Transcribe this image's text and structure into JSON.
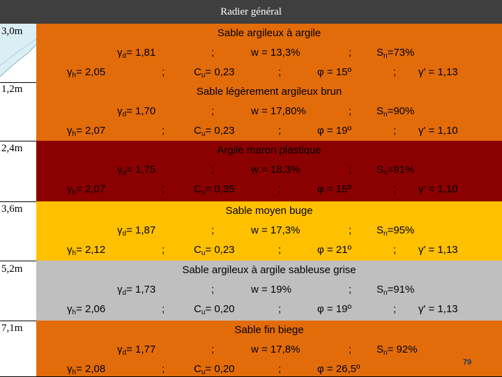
{
  "header": {
    "title": "Radier général"
  },
  "colors": {
    "orange": "#e36c0a",
    "darkred": "#8b0000",
    "yellow": "#ffc000",
    "grey": "#bfbfbf",
    "header": "#3f3f3f",
    "accent_blue": "#dbeef4"
  },
  "layers": [
    {
      "depth": "3,0m",
      "name": "Sable argileux à argile",
      "color": "#e36c0a",
      "gd_sym": "γ",
      "gd_sub": "d",
      "gd_val": "= 1,81",
      "sep1": ";",
      "w": "w = 13,3%",
      "sep2": ";",
      "sn_sym": "S",
      "sn_sub": "n",
      "sn_val": "=73%",
      "gh_sym": "γ",
      "gh_sub": "h",
      "gh_val": "= 2,05",
      "sep3": ";",
      "cu_sym": "C",
      "cu_sub": "u",
      "cu_val": "= 0,23",
      "sep4": ";",
      "phi": "φ = 15º",
      "sep5": ";",
      "gp": "γ' = 1,13"
    },
    {
      "depth": "1,2m",
      "name": "Sable légèrement argileux brun",
      "color": "#e36c0a",
      "gd_sym": "γ",
      "gd_sub": "d",
      "gd_val": "= 1,70",
      "sep1": ";",
      "w": "w = 17,80%",
      "sep2": ";",
      "sn_sym": "S",
      "sn_sub": "n",
      "sn_val": "=90%",
      "gh_sym": "γ",
      "gh_sub": "h",
      "gh_val": "= 2,07",
      "sep3": ";",
      "cu_sym": "C",
      "cu_sub": "u",
      "cu_val": "= 0,23",
      "sep4": ";",
      "phi": "φ = 19º",
      "sep5": ";",
      "gp": "γ' = 1,10"
    },
    {
      "depth": "2,4m",
      "name": "Argile maron plastique",
      "color": "#8b0000",
      "gd_sym": "γ",
      "gd_sub": "d",
      "gd_val": "= 1,75",
      "sep1": ";",
      "w": "w = 18,3%",
      "sep2": ";",
      "sn_sym": "S",
      "sn_sub": "n",
      "sn_val": "=91%",
      "gh_sym": "γ",
      "gh_sub": "h",
      "gh_val": "= 2,07",
      "sep3": ";",
      "cu_sym": "C",
      "cu_sub": "u",
      "cu_val": "= 0,35",
      "sep4": ";",
      "phi": "φ = 15º",
      "sep5": ";",
      "gp": "γ' = 1,10"
    },
    {
      "depth": "3,6m",
      "name": "Sable moyen buge",
      "color": "#ffc000",
      "gd_sym": "γ",
      "gd_sub": "d",
      "gd_val": "= 1,87",
      "sep1": ";",
      "w": "w = 17,3%",
      "sep2": ";",
      "sn_sym": "S",
      "sn_sub": "n",
      "sn_val": "=95%",
      "gh_sym": "γ",
      "gh_sub": "h",
      "gh_val": "= 2,12",
      "sep3": ";",
      "cu_sym": "C",
      "cu_sub": "u",
      "cu_val": "= 0,23",
      "sep4": ";",
      "phi": "φ = 21º",
      "sep5": ";",
      "gp": "γ' = 1,13"
    },
    {
      "depth": "5,2m",
      "name": "Sable argileux à argile sableuse grise",
      "color": "#bfbfbf",
      "gd_sym": "γ",
      "gd_sub": "d",
      "gd_val": "= 1,73",
      "sep1": ";",
      "w": "w = 19%",
      "sep2": ";",
      "sn_sym": "S",
      "sn_sub": "n",
      "sn_val": "=91%",
      "gh_sym": "γ",
      "gh_sub": "h",
      "gh_val": "= 2,06",
      "sep3": ";",
      "cu_sym": "C",
      "cu_sub": "u",
      "cu_val": "= 0,20",
      "sep4": ";",
      "phi": "φ = 19º",
      "sep5": ";",
      "gp": "γ' = 1,13"
    },
    {
      "depth": "7,1m",
      "name": "Sable fin biege",
      "color": "#e36c0a",
      "gd_sym": "γ",
      "gd_sub": "d",
      "gd_val": "= 1,77",
      "sep1": ";",
      "w": "w = 17,8%",
      "sep2": ";",
      "sn_sym": "S",
      "sn_sub": "n",
      "sn_val": "= 92%",
      "gh_sym": "γ",
      "gh_sub": "h",
      "gh_val": "= 2,08",
      "sep3": ";",
      "cu_sym": "C",
      "cu_sub": "u",
      "cu_val": "= 0,20",
      "sep4": ";",
      "phi": "φ = 26,5º",
      "sep5": "",
      "gp": ""
    }
  ],
  "page_number": "79"
}
